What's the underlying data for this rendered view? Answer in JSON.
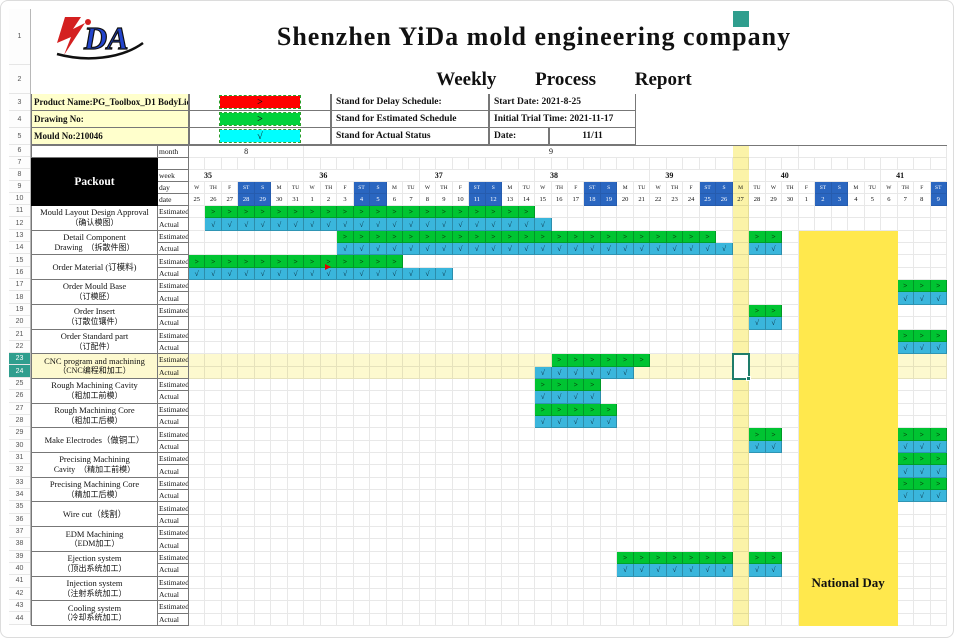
{
  "title": "Shenzhen YiDa mold engineering company",
  "subtitle": "Weekly Process Report",
  "logo": {
    "part1": "Y",
    "part2": "DA"
  },
  "colors": {
    "estimated": "#00c432",
    "actual": "#3ab6dc",
    "delay": "#ff0000",
    "legend_estimated": "#00d23c",
    "legend_actual": "#00ffff",
    "weekend_header": "#2a66c0",
    "strip": "#fbf3a8",
    "holiday_block": "#ffe84d",
    "row_highlight": "#fdf9cf",
    "cream": "#ffffcc"
  },
  "info_rows": [
    {
      "label": "Product Name:PG_Toolbox_D1 BodyLid",
      "swatch": {
        "symbol": ">",
        "color": "#ff0000"
      },
      "legend": "Stand for Delay Schedule:",
      "right_label": "Start Date: 2021-8-25",
      "right_value": ""
    },
    {
      "label": "Drawing No:",
      "swatch": {
        "symbol": ">",
        "color": "#00d23c"
      },
      "legend": "Stand for Estimated Schedule",
      "right_label": "Initial Trial Time: 2021-11-17",
      "right_value": ""
    },
    {
      "label": "Mould No:210046",
      "swatch": {
        "symbol": "√",
        "color": "#00ffff"
      },
      "legend": "Stand for Actual Status",
      "right_label": "Date:",
      "right_value": "11/11"
    }
  ],
  "packout_label": "Packout",
  "axis_labels": {
    "month": "month",
    "spacer": "",
    "week": "week",
    "day": "day",
    "date": "date"
  },
  "months": [
    {
      "label": "8",
      "span": 7
    },
    {
      "label": "9",
      "span": 30
    },
    {
      "label": "",
      "span": 9
    }
  ],
  "weeks": [
    {
      "label": "35",
      "span": 7
    },
    {
      "label": "36",
      "span": 7
    },
    {
      "label": "37",
      "span": 7
    },
    {
      "label": "38",
      "span": 7
    },
    {
      "label": "39",
      "span": 7
    },
    {
      "label": "40",
      "span": 7
    },
    {
      "label": "41",
      "span": 4
    }
  ],
  "day_pattern": [
    "W",
    "TH",
    "F",
    "ST",
    "S",
    "M",
    "TU"
  ],
  "weekend_days": [
    "ST",
    "S"
  ],
  "dates": [
    25,
    26,
    27,
    28,
    29,
    30,
    31,
    1,
    2,
    3,
    4,
    5,
    6,
    7,
    8,
    9,
    10,
    11,
    12,
    13,
    14,
    15,
    16,
    17,
    18,
    19,
    20,
    21,
    22,
    23,
    24,
    25,
    26,
    27,
    28,
    29,
    30,
    1,
    2,
    3,
    4,
    5,
    6,
    7,
    8,
    9
  ],
  "row_labels": {
    "estimated": "Estimated",
    "actual": "Actual"
  },
  "glyphs": {
    "estimated": ">",
    "actual": "√"
  },
  "tasks": [
    {
      "name_line1": "Mould Layout Design Approval",
      "name_line2": "（确认模图）",
      "estimated": [
        [
          2,
          21
        ]
      ],
      "actual": [
        [
          2,
          22
        ]
      ]
    },
    {
      "name_line1": "Detail Component",
      "name_line2": "Drawing　（拆散件图）",
      "estimated": [
        [
          10,
          32
        ],
        [
          35,
          36
        ]
      ],
      "actual": [
        [
          10,
          33
        ],
        [
          35,
          36
        ]
      ]
    },
    {
      "name_line1": "Order Material (订模料)",
      "name_line2": "",
      "estimated": [
        [
          1,
          13
        ]
      ],
      "actual": [
        [
          1,
          16
        ]
      ]
    },
    {
      "name_line1": "Order Mould Base",
      "name_line2": "（订模胚）",
      "estimated": [
        [
          44,
          46
        ]
      ],
      "actual": [
        [
          44,
          46
        ]
      ]
    },
    {
      "name_line1": "Order Insert",
      "name_line2": "（订散位镶件）",
      "estimated": [
        [
          35,
          36
        ]
      ],
      "actual": [
        [
          35,
          36
        ]
      ]
    },
    {
      "name_line1": "Order Standard part",
      "name_line2": "（订配件）",
      "estimated": [
        [
          44,
          46
        ]
      ],
      "actual": [
        [
          44,
          46
        ]
      ]
    },
    {
      "name_line1": "CNC program and machining",
      "name_line2": "（CNC编程和加工）",
      "estimated": [
        [
          23,
          28
        ]
      ],
      "actual": [
        [
          22,
          27
        ]
      ],
      "highlight": true
    },
    {
      "name_line1": "Rough Machining Cavity",
      "name_line2": "（粗加工前模）",
      "estimated": [
        [
          22,
          25
        ]
      ],
      "actual": [
        [
          22,
          25
        ]
      ]
    },
    {
      "name_line1": "Rough Machining Core",
      "name_line2": "（粗加工后模）",
      "estimated": [
        [
          22,
          26
        ]
      ],
      "actual": [
        [
          22,
          26
        ]
      ]
    },
    {
      "name_line1": "Make Electrodes（做铜工）",
      "name_line2": "",
      "estimated": [
        [
          35,
          36
        ],
        [
          44,
          46
        ]
      ],
      "actual": [
        [
          35,
          36
        ],
        [
          44,
          46
        ]
      ]
    },
    {
      "name_line1": "Precising Machining",
      "name_line2": "Cavity　（精加工前模）",
      "estimated": [
        [
          44,
          46
        ]
      ],
      "actual": [
        [
          44,
          46
        ]
      ]
    },
    {
      "name_line1": "Precising Machining Core",
      "name_line2": "（精加工后模）",
      "estimated": [
        [
          44,
          46
        ]
      ],
      "actual": [
        [
          44,
          46
        ]
      ]
    },
    {
      "name_line1": "Wire cut（线割）",
      "name_line2": "",
      "estimated": [],
      "actual": []
    },
    {
      "name_line1": "EDM Machining",
      "name_line2": "（EDM加工）",
      "estimated": [],
      "actual": []
    },
    {
      "name_line1": "Ejection system",
      "name_line2": "（顶出系统加工）",
      "estimated": [
        [
          27,
          33
        ],
        [
          35,
          36
        ]
      ],
      "actual": [
        [
          27,
          33
        ],
        [
          35,
          36
        ]
      ]
    },
    {
      "name_line1": "Injection system",
      "name_line2": "（注射系统加工）",
      "estimated": [],
      "actual": []
    },
    {
      "name_line1": "Cooling system",
      "name_line2": "（冷却系统加工）",
      "estimated": [],
      "actual": []
    }
  ],
  "overlays": {
    "strip_col": 34,
    "national": {
      "label": "National Day",
      "col_start": 38,
      "col_end": 43,
      "row_start": 13,
      "label_row": 41
    },
    "selection": {
      "col": 34,
      "row_start": 23,
      "row_end": 24
    },
    "red_marker": {
      "col": 9,
      "row": 15
    }
  },
  "selection_rows": [
    23,
    24
  ],
  "row_count": 44
}
